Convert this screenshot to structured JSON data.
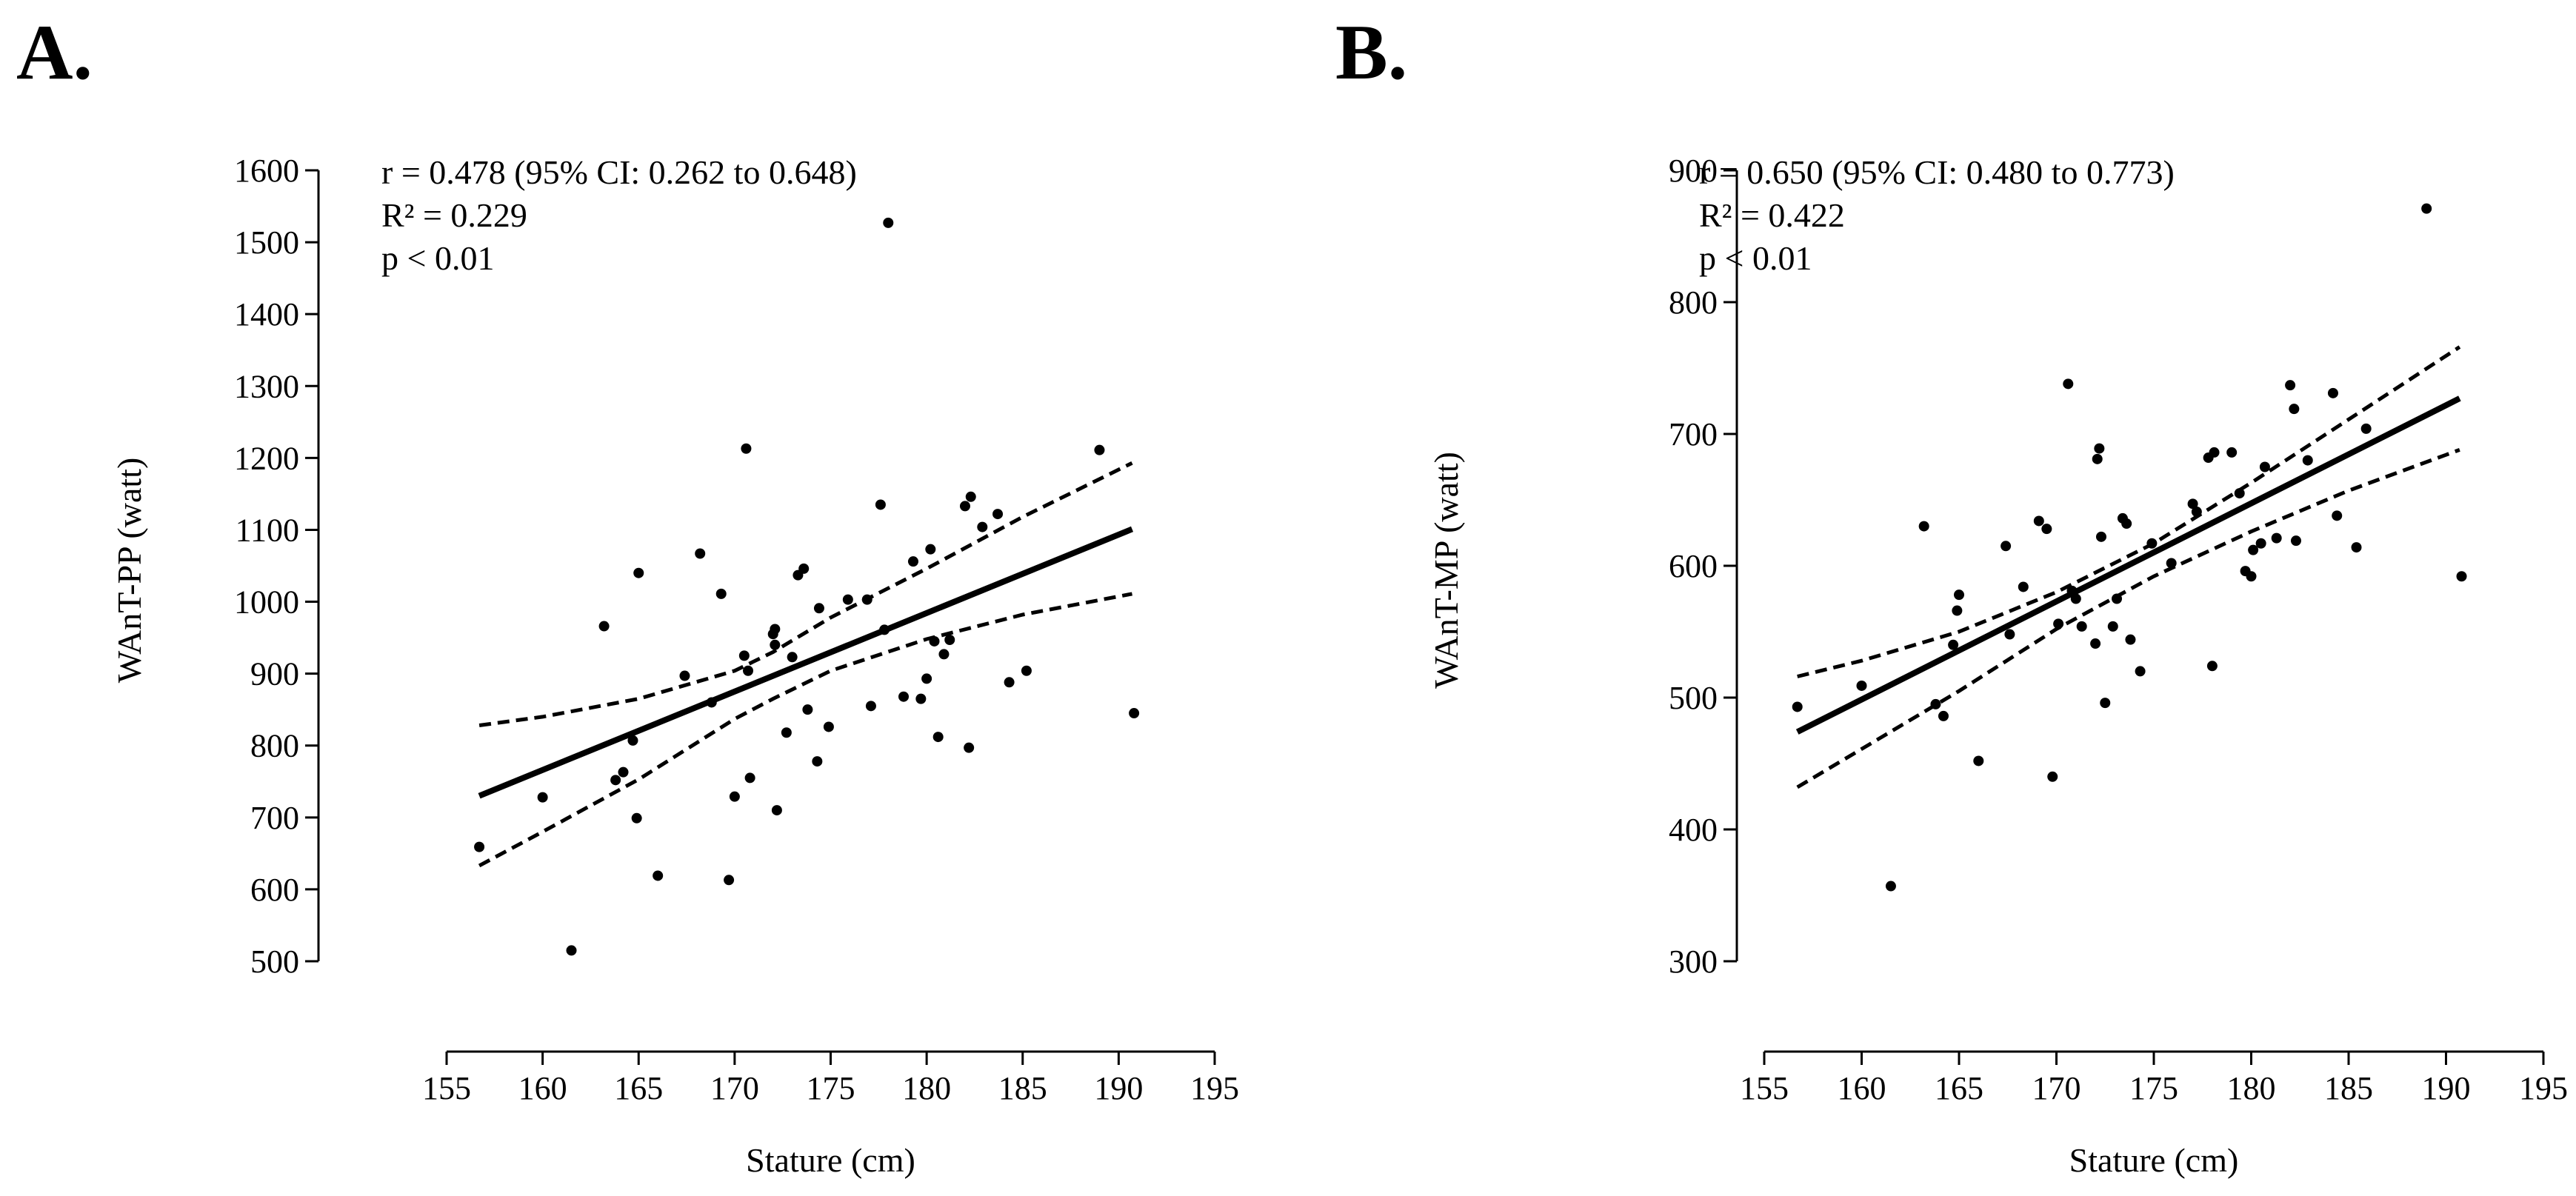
{
  "chart_data": [
    {
      "panel_label": "A.",
      "type": "scatter",
      "xlabel": "Stature (cm)",
      "ylabel": "WAnT-PP (watt)",
      "xlim": [
        155,
        195
      ],
      "ylim": [
        500,
        1600
      ],
      "xticks": [
        155,
        160,
        165,
        170,
        175,
        180,
        185,
        190,
        195
      ],
      "yticks": [
        500,
        600,
        700,
        800,
        900,
        1000,
        1100,
        1200,
        1300,
        1400,
        1500,
        1600
      ],
      "annotations": [
        "r = 0.478 (95% CI: 0.262 to 0.648)",
        "R² = 0.229",
        "p < 0.01"
      ],
      "regression": {
        "x": [
          156.7,
          190.7
        ],
        "y": [
          730,
          1101
        ]
      },
      "ci_upper": {
        "x": [
          156.7,
          160,
          165,
          170,
          172,
          175,
          180,
          185,
          190.7
        ],
        "y": [
          828,
          840,
          865,
          904,
          930,
          978,
          1046,
          1118,
          1193
        ]
      },
      "ci_lower": {
        "x": [
          156.7,
          160,
          165,
          170,
          172,
          175,
          180,
          185,
          190.7
        ],
        "y": [
          633,
          680,
          753,
          837,
          865,
          904,
          948,
          982,
          1011
        ]
      },
      "points": {
        "x": [
          156.7,
          160.0,
          161.5,
          163.2,
          163.8,
          164.2,
          164.7,
          164.9,
          165.0,
          166.0,
          167.4,
          168.2,
          168.8,
          169.3,
          169.7,
          170.0,
          170.5,
          170.6,
          170.7,
          170.8,
          172.0,
          172.1,
          172.1,
          172.2,
          172.7,
          173.0,
          173.3,
          173.6,
          173.8,
          174.3,
          174.4,
          174.9,
          175.9,
          176.9,
          177.1,
          177.6,
          177.8,
          178.0,
          178.8,
          179.3,
          179.7,
          180.0,
          180.2,
          180.4,
          180.6,
          180.9,
          181.2,
          182.0,
          182.2,
          182.3,
          182.9,
          183.7,
          184.3,
          185.2,
          189.0,
          190.8
        ],
        "y": [
          659,
          728,
          515,
          966,
          752,
          763,
          807,
          699,
          1040,
          619,
          897,
          1067,
          860,
          1011,
          613,
          729,
          925,
          1213,
          904,
          755,
          955,
          940,
          962,
          710,
          818,
          923,
          1037,
          1046,
          850,
          778,
          991,
          826,
          1003,
          1003,
          855,
          1135,
          961,
          1527,
          868,
          1056,
          865,
          893,
          1073,
          945,
          812,
          927,
          947,
          1133,
          797,
          1146,
          1104,
          1122,
          888,
          904,
          1211,
          845
        ]
      }
    },
    {
      "panel_label": "B.",
      "type": "scatter",
      "xlabel": "Stature (cm)",
      "ylabel": "WAnT-MP (watt)",
      "xlim": [
        155,
        195
      ],
      "ylim": [
        300,
        900
      ],
      "xticks": [
        155,
        160,
        165,
        170,
        175,
        180,
        185,
        190,
        195
      ],
      "yticks": [
        300,
        400,
        500,
        600,
        700,
        800,
        900
      ],
      "annotations": [
        "r = 0.650 (95% CI: 0.480 to 0.773)",
        "R² = 0.422",
        "p < 0.01"
      ],
      "regression": {
        "x": [
          156.7,
          190.7
        ],
        "y": [
          474,
          727
        ]
      },
      "ci_upper": {
        "x": [
          156.7,
          160,
          165,
          170,
          175,
          180,
          185,
          190.7
        ],
        "y": [
          516,
          528,
          550,
          580,
          617,
          663,
          711,
          766
        ]
      },
      "ci_lower": {
        "x": [
          156.7,
          160,
          165,
          170,
          175,
          180,
          185,
          190.7
        ],
        "y": [
          432,
          461,
          505,
          552,
          592,
          626,
          657,
          688
        ]
      },
      "points": {
        "x": [
          156.7,
          160.0,
          161.5,
          163.2,
          163.8,
          164.2,
          164.7,
          164.9,
          165.0,
          166.0,
          167.4,
          167.6,
          168.3,
          169.1,
          169.5,
          169.8,
          170.1,
          170.6,
          170.8,
          171.0,
          171.3,
          172.0,
          172.1,
          172.2,
          172.3,
          172.5,
          172.9,
          173.1,
          173.4,
          173.6,
          173.8,
          174.3,
          174.9,
          175.9,
          177.0,
          177.2,
          177.8,
          178.0,
          178.1,
          179.0,
          179.4,
          179.7,
          180.0,
          180.1,
          180.5,
          180.7,
          181.3,
          182.0,
          182.2,
          182.3,
          182.9,
          184.2,
          184.4,
          185.4,
          185.9,
          189.0,
          190.8
        ],
        "y": [
          493,
          509,
          357,
          630,
          495,
          486,
          540,
          566,
          578,
          452,
          615,
          548,
          584,
          634,
          628,
          440,
          556,
          738,
          581,
          575,
          554,
          541,
          681,
          689,
          622,
          496,
          554,
          575,
          636,
          632,
          544,
          520,
          617,
          602,
          647,
          641,
          682,
          524,
          686,
          686,
          655,
          596,
          592,
          612,
          617,
          675,
          621,
          737,
          719,
          619,
          680,
          731,
          638,
          614,
          704,
          871,
          592
        ]
      }
    }
  ]
}
